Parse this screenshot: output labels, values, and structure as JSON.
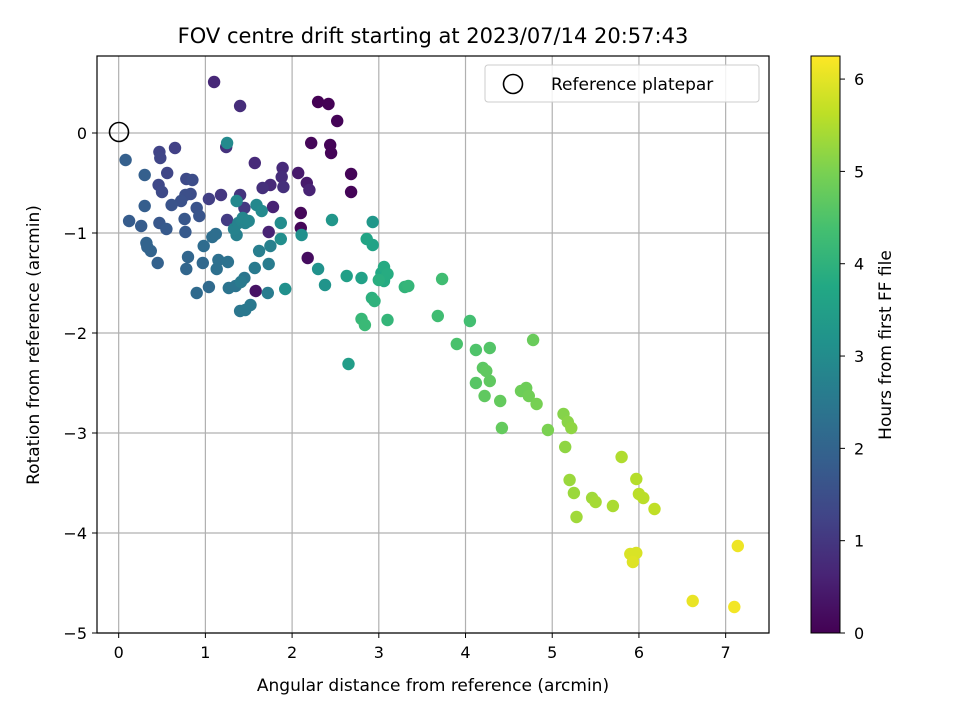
{
  "chart_data": {
    "type": "scatter",
    "title": "FOV centre drift starting at 2023/07/14 20:57:43",
    "xlabel": "Angular distance from reference (arcmin)",
    "ylabel": "Rotation from reference (arcmin)",
    "xlim": [
      -0.25,
      7.5
    ],
    "ylim": [
      -5.0,
      0.77
    ],
    "xticks": [
      0,
      1,
      2,
      3,
      4,
      5,
      6,
      7
    ],
    "yticks": [
      0,
      -1,
      -2,
      -3,
      -4,
      -5
    ],
    "xtick_labels": [
      "0",
      "1",
      "2",
      "3",
      "4",
      "5",
      "6",
      "7"
    ],
    "ytick_labels": [
      "0",
      "−1",
      "−2",
      "−3",
      "−4",
      "−5"
    ],
    "grid": true,
    "legend": {
      "placement": "upper-right",
      "entries": [
        "Reference platepar"
      ]
    },
    "colorbar": {
      "label": "Hours from first FF file",
      "colormap": "viridis",
      "range": [
        0,
        6.25
      ],
      "ticks": [
        0,
        1,
        2,
        3,
        4,
        5,
        6
      ],
      "tick_labels": [
        "0",
        "1",
        "2",
        "3",
        "4",
        "5",
        "6"
      ]
    },
    "reference": {
      "name": "Reference platepar",
      "x": 0,
      "y": 0
    },
    "points": [
      [
        2.3,
        0.31,
        0.0
      ],
      [
        2.42,
        0.29,
        0.02
      ],
      [
        2.52,
        0.12,
        0.05
      ],
      [
        2.22,
        -0.1,
        0.1
      ],
      [
        2.68,
        -0.41,
        0.05
      ],
      [
        2.44,
        -0.12,
        0.05
      ],
      [
        2.45,
        -0.2,
        0.05
      ],
      [
        2.68,
        -0.59,
        0.05
      ],
      [
        2.1,
        -0.8,
        0.1
      ],
      [
        2.1,
        -0.95,
        0.1
      ],
      [
        2.18,
        -1.25,
        0.2
      ],
      [
        1.58,
        -1.58,
        0.3
      ],
      [
        2.07,
        -0.4,
        0.45
      ],
      [
        2.17,
        -0.5,
        0.45
      ],
      [
        2.2,
        -0.57,
        0.6
      ],
      [
        1.1,
        0.51,
        0.7
      ],
      [
        1.4,
        0.27,
        0.8
      ],
      [
        1.78,
        -0.74,
        0.6
      ],
      [
        1.73,
        -0.99,
        0.6
      ],
      [
        1.57,
        -0.3,
        0.75
      ],
      [
        1.75,
        -0.52,
        0.75
      ],
      [
        1.89,
        -0.35,
        0.75
      ],
      [
        1.88,
        -0.44,
        0.8
      ],
      [
        1.9,
        -0.54,
        0.85
      ],
      [
        1.66,
        -0.55,
        0.85
      ],
      [
        1.24,
        -0.14,
        0.9
      ],
      [
        1.4,
        -0.62,
        0.95
      ],
      [
        1.18,
        -0.62,
        1.0
      ],
      [
        1.45,
        -0.75,
        1.05
      ],
      [
        1.25,
        -0.87,
        1.1
      ],
      [
        1.04,
        -0.66,
        1.15
      ],
      [
        0.65,
        -0.15,
        1.2
      ],
      [
        0.47,
        -0.19,
        1.25
      ],
      [
        0.48,
        -0.25,
        1.3
      ],
      [
        0.56,
        -0.4,
        1.3
      ],
      [
        0.46,
        -0.52,
        1.35
      ],
      [
        0.5,
        -0.59,
        1.4
      ],
      [
        0.78,
        -0.46,
        1.4
      ],
      [
        0.85,
        -0.47,
        1.45
      ],
      [
        0.83,
        -0.61,
        1.45
      ],
      [
        0.77,
        -0.62,
        1.5
      ],
      [
        0.72,
        -0.68,
        1.55
      ],
      [
        0.61,
        -0.72,
        1.6
      ],
      [
        0.9,
        -0.75,
        1.6
      ],
      [
        0.93,
        -0.83,
        1.65
      ],
      [
        0.76,
        -0.86,
        1.7
      ],
      [
        0.47,
        -0.9,
        1.7
      ],
      [
        0.55,
        -0.96,
        1.75
      ],
      [
        0.77,
        -0.99,
        1.75
      ],
      [
        0.26,
        -0.93,
        1.8
      ],
      [
        0.12,
        -0.88,
        1.8
      ],
      [
        0.3,
        -0.73,
        1.85
      ],
      [
        0.08,
        -0.27,
        1.9
      ],
      [
        0.3,
        -0.42,
        1.9
      ],
      [
        0.45,
        -1.3,
        1.95
      ],
      [
        0.37,
        -1.18,
        2.0
      ],
      [
        0.32,
        -1.1,
        2.0
      ],
      [
        0.33,
        -1.14,
        2.0
      ],
      [
        0.8,
        -1.24,
        2.05
      ],
      [
        0.78,
        -1.36,
        2.05
      ],
      [
        0.97,
        -1.3,
        2.1
      ],
      [
        0.9,
        -1.6,
        2.15
      ],
      [
        1.04,
        -1.54,
        2.15
      ],
      [
        0.98,
        -1.13,
        2.2
      ],
      [
        1.08,
        -1.04,
        2.25
      ],
      [
        1.12,
        -1.01,
        2.25
      ],
      [
        1.13,
        -1.36,
        2.3
      ],
      [
        1.15,
        -1.27,
        2.3
      ],
      [
        1.26,
        -1.29,
        2.35
      ],
      [
        1.27,
        -1.55,
        2.4
      ],
      [
        1.35,
        -1.53,
        2.4
      ],
      [
        1.4,
        -1.78,
        2.45
      ],
      [
        1.45,
        -1.45,
        2.45
      ],
      [
        1.46,
        -1.77,
        2.5
      ],
      [
        1.52,
        -1.72,
        2.5
      ],
      [
        1.41,
        -1.49,
        2.55
      ],
      [
        1.57,
        -1.35,
        2.55
      ],
      [
        1.72,
        -1.6,
        2.6
      ],
      [
        1.73,
        -1.31,
        2.6
      ],
      [
        1.62,
        -1.18,
        2.65
      ],
      [
        1.75,
        -1.13,
        2.7
      ],
      [
        1.36,
        -1.02,
        2.7
      ],
      [
        1.33,
        -0.96,
        2.75
      ],
      [
        1.38,
        -0.9,
        2.75
      ],
      [
        1.42,
        -0.88,
        2.8
      ],
      [
        1.46,
        -0.9,
        2.8
      ],
      [
        1.43,
        -0.85,
        2.85
      ],
      [
        1.5,
        -0.88,
        2.85
      ],
      [
        1.59,
        -0.72,
        2.9
      ],
      [
        1.36,
        -0.68,
        2.9
      ],
      [
        1.65,
        -0.78,
        2.95
      ],
      [
        1.25,
        -0.1,
        2.95
      ],
      [
        1.87,
        -0.9,
        3.0
      ],
      [
        1.87,
        -1.06,
        3.05
      ],
      [
        1.92,
        -1.56,
        3.1
      ],
      [
        2.11,
        -1.02,
        3.1
      ],
      [
        2.3,
        -1.36,
        3.15
      ],
      [
        2.38,
        -1.52,
        3.2
      ],
      [
        2.46,
        -0.87,
        3.25
      ],
      [
        2.93,
        -0.89,
        3.3
      ],
      [
        2.65,
        -2.31,
        3.45
      ],
      [
        2.63,
        -1.43,
        3.5
      ],
      [
        2.8,
        -1.45,
        3.55
      ],
      [
        2.93,
        -1.12,
        3.6
      ],
      [
        2.86,
        -1.06,
        3.65
      ],
      [
        3.03,
        -1.4,
        3.75
      ],
      [
        3.06,
        -1.34,
        3.8
      ],
      [
        3.06,
        -1.48,
        3.8
      ],
      [
        3.1,
        -1.41,
        3.85
      ],
      [
        3.0,
        -1.47,
        3.9
      ],
      [
        2.92,
        -1.65,
        3.95
      ],
      [
        2.95,
        -1.68,
        4.0
      ],
      [
        3.3,
        -1.54,
        4.05
      ],
      [
        3.34,
        -1.53,
        4.1
      ],
      [
        3.1,
        -1.87,
        4.1
      ],
      [
        2.8,
        -1.86,
        4.15
      ],
      [
        2.84,
        -1.92,
        4.2
      ],
      [
        3.73,
        -1.46,
        4.3
      ],
      [
        3.68,
        -1.83,
        4.3
      ],
      [
        4.05,
        -1.88,
        4.35
      ],
      [
        3.9,
        -2.11,
        4.45
      ],
      [
        4.12,
        -2.17,
        4.5
      ],
      [
        4.28,
        -2.15,
        4.55
      ],
      [
        4.12,
        -2.5,
        4.6
      ],
      [
        4.2,
        -2.35,
        4.65
      ],
      [
        4.24,
        -2.38,
        4.7
      ],
      [
        4.28,
        -2.48,
        4.7
      ],
      [
        4.22,
        -2.63,
        4.7
      ],
      [
        4.4,
        -2.68,
        4.75
      ],
      [
        4.42,
        -2.95,
        4.75
      ],
      [
        4.78,
        -2.07,
        4.8
      ],
      [
        4.64,
        -2.58,
        4.85
      ],
      [
        4.7,
        -2.55,
        4.85
      ],
      [
        4.73,
        -2.63,
        4.9
      ],
      [
        4.82,
        -2.71,
        4.95
      ],
      [
        4.95,
        -2.97,
        5.0
      ],
      [
        5.13,
        -2.81,
        5.1
      ],
      [
        5.18,
        -2.89,
        5.15
      ],
      [
        5.22,
        -2.95,
        5.2
      ],
      [
        5.15,
        -3.14,
        5.2
      ],
      [
        5.2,
        -3.47,
        5.3
      ],
      [
        5.25,
        -3.6,
        5.3
      ],
      [
        5.28,
        -3.84,
        5.35
      ],
      [
        5.46,
        -3.65,
        5.35
      ],
      [
        5.5,
        -3.69,
        5.4
      ],
      [
        5.7,
        -3.73,
        5.45
      ],
      [
        5.8,
        -3.24,
        5.5
      ],
      [
        5.97,
        -3.46,
        5.55
      ],
      [
        6.0,
        -3.61,
        5.6
      ],
      [
        6.05,
        -3.65,
        5.6
      ],
      [
        6.18,
        -3.76,
        5.65
      ],
      [
        5.9,
        -4.21,
        5.9
      ],
      [
        5.97,
        -4.2,
        5.9
      ],
      [
        5.93,
        -4.29,
        5.95
      ],
      [
        6.62,
        -4.68,
        6.05
      ],
      [
        7.14,
        -4.13,
        6.1
      ],
      [
        7.1,
        -4.74,
        6.15
      ]
    ]
  }
}
